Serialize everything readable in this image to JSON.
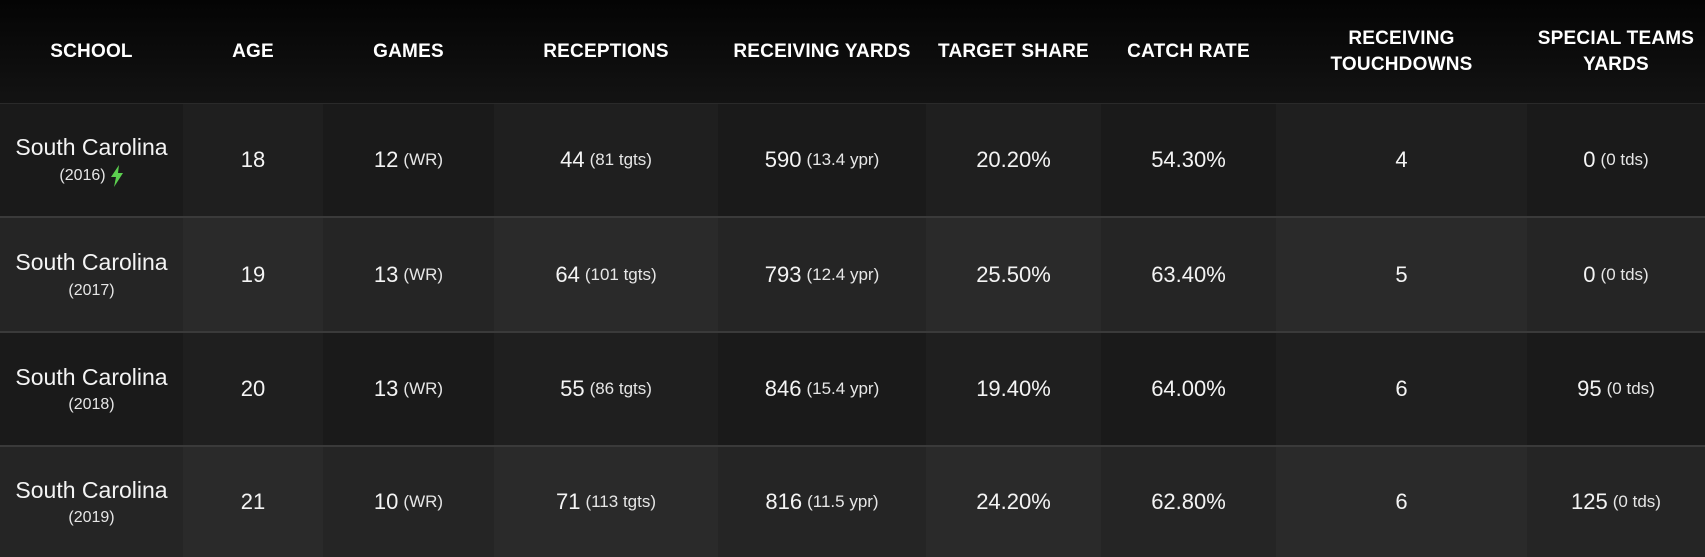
{
  "columns": [
    "SCHOOL",
    "AGE",
    "GAMES",
    "RECEPTIONS",
    "RECEIVING YARDS",
    "TARGET SHARE",
    "CATCH RATE",
    "RECEIVING TOUCHDOWNS",
    "SPECIAL TEAMS YARDS"
  ],
  "colors": {
    "bolt": "#5ccf4f",
    "header_bg": "#0b0b0b",
    "row_dark": "#1c1c1c",
    "row_light": "#232323"
  },
  "rows": [
    {
      "school": "South Carolina",
      "year": "(2016)",
      "bolt_icon": "lightning-bolt-icon",
      "age": "18",
      "games": "12",
      "games_pos": "(WR)",
      "rec": "44",
      "rec_tgts": "(81 tgts)",
      "yards": "590",
      "ypr": "(13.4 ypr)",
      "target_share": "20.20%",
      "catch_rate": "54.30%",
      "tds": "4",
      "st_yards": "0",
      "st_tds": "(0 tds)"
    },
    {
      "school": "South Carolina",
      "year": "(2017)",
      "age": "19",
      "games": "13",
      "games_pos": "(WR)",
      "rec": "64",
      "rec_tgts": "(101 tgts)",
      "yards": "793",
      "ypr": "(12.4 ypr)",
      "target_share": "25.50%",
      "catch_rate": "63.40%",
      "tds": "5",
      "st_yards": "0",
      "st_tds": "(0 tds)"
    },
    {
      "school": "South Carolina",
      "year": "(2018)",
      "age": "20",
      "games": "13",
      "games_pos": "(WR)",
      "rec": "55",
      "rec_tgts": "(86 tgts)",
      "yards": "846",
      "ypr": "(15.4 ypr)",
      "target_share": "19.40%",
      "catch_rate": "64.00%",
      "tds": "6",
      "st_yards": "95",
      "st_tds": "(0 tds)"
    },
    {
      "school": "South Carolina",
      "year": "(2019)",
      "age": "21",
      "games": "10",
      "games_pos": "(WR)",
      "rec": "71",
      "rec_tgts": "(113 tgts)",
      "yards": "816",
      "ypr": "(11.5 ypr)",
      "target_share": "24.20%",
      "catch_rate": "62.80%",
      "tds": "6",
      "st_yards": "125",
      "st_tds": "(0 tds)"
    }
  ]
}
